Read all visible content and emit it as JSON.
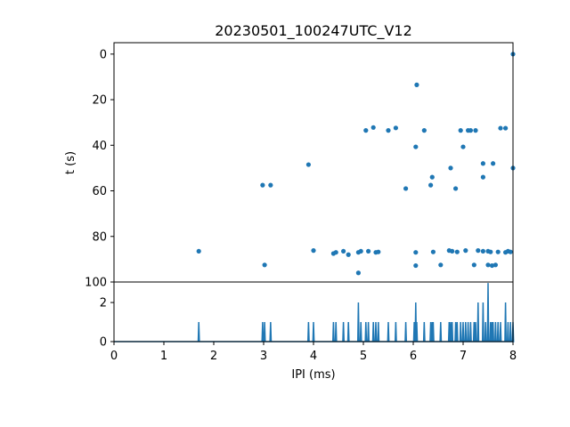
{
  "chart_data": [
    {
      "type": "scatter",
      "title": "20230501_100247UTC_V12",
      "ylabel": "t (s)",
      "xlim": [
        0,
        8
      ],
      "ylim": [
        100,
        -5
      ],
      "y_inverted": true,
      "yticks": [
        "0",
        "20",
        "40",
        "60",
        "80",
        "100"
      ],
      "color": "#1f77b4",
      "points": [
        [
          8.0,
          0
        ],
        [
          6.07,
          13.5
        ],
        [
          5.2,
          32.2
        ],
        [
          5.65,
          32.4
        ],
        [
          5.05,
          33.5
        ],
        [
          5.5,
          33.5
        ],
        [
          6.22,
          33.5
        ],
        [
          6.95,
          33.5
        ],
        [
          7.1,
          33.5
        ],
        [
          7.15,
          33.5
        ],
        [
          7.25,
          33.5
        ],
        [
          7.75,
          32.5
        ],
        [
          7.85,
          32.5
        ],
        [
          6.05,
          40.7
        ],
        [
          7.0,
          40.7
        ],
        [
          3.9,
          48.5
        ],
        [
          7.4,
          48.0
        ],
        [
          7.6,
          48.0
        ],
        [
          6.75,
          50.0
        ],
        [
          8.0,
          50.0
        ],
        [
          6.38,
          54.0
        ],
        [
          7.4,
          54.0
        ],
        [
          2.98,
          57.5
        ],
        [
          3.14,
          57.5
        ],
        [
          6.35,
          57.5
        ],
        [
          5.85,
          59.0
        ],
        [
          6.85,
          59.0
        ],
        [
          1.7,
          86.5
        ],
        [
          4.0,
          86.2
        ],
        [
          4.4,
          87.5
        ],
        [
          4.45,
          87.0
        ],
        [
          4.6,
          86.5
        ],
        [
          4.7,
          88.0
        ],
        [
          4.9,
          87.0
        ],
        [
          4.95,
          86.5
        ],
        [
          5.1,
          86.5
        ],
        [
          5.25,
          87.0
        ],
        [
          5.3,
          86.8
        ],
        [
          6.05,
          87.0
        ],
        [
          6.4,
          86.8
        ],
        [
          6.72,
          86.2
        ],
        [
          6.78,
          86.5
        ],
        [
          6.88,
          86.8
        ],
        [
          7.05,
          86.2
        ],
        [
          7.3,
          86.2
        ],
        [
          7.4,
          86.5
        ],
        [
          7.5,
          86.5
        ],
        [
          7.55,
          86.8
        ],
        [
          7.7,
          86.8
        ],
        [
          7.85,
          87.0
        ],
        [
          7.9,
          86.5
        ],
        [
          7.95,
          86.8
        ],
        [
          3.02,
          92.5
        ],
        [
          6.05,
          92.8
        ],
        [
          6.55,
          92.5
        ],
        [
          7.22,
          92.5
        ],
        [
          7.5,
          92.5
        ],
        [
          7.58,
          92.8
        ],
        [
          7.65,
          92.5
        ],
        [
          4.9,
          96.0
        ]
      ]
    },
    {
      "type": "line",
      "xlabel": "IPI (ms)",
      "xlim": [
        0,
        8
      ],
      "ylim": [
        0,
        3.05
      ],
      "xticks": [
        "0",
        "1",
        "2",
        "3",
        "4",
        "5",
        "6",
        "7",
        "8"
      ],
      "yticks": [
        "0",
        "2"
      ],
      "color": "#1f77b4",
      "spikes": [
        [
          1.7,
          1
        ],
        [
          2.98,
          1
        ],
        [
          3.02,
          1
        ],
        [
          3.14,
          1
        ],
        [
          3.9,
          1
        ],
        [
          4.0,
          1
        ],
        [
          4.4,
          1
        ],
        [
          4.45,
          1
        ],
        [
          4.6,
          1
        ],
        [
          4.7,
          1
        ],
        [
          4.9,
          2
        ],
        [
          4.95,
          1
        ],
        [
          5.05,
          1
        ],
        [
          5.1,
          1
        ],
        [
          5.2,
          1
        ],
        [
          5.25,
          1
        ],
        [
          5.3,
          1
        ],
        [
          5.5,
          1
        ],
        [
          5.65,
          1
        ],
        [
          5.85,
          1
        ],
        [
          6.02,
          1
        ],
        [
          6.05,
          2
        ],
        [
          6.07,
          1
        ],
        [
          6.22,
          1
        ],
        [
          6.35,
          1
        ],
        [
          6.38,
          1
        ],
        [
          6.4,
          1
        ],
        [
          6.55,
          1
        ],
        [
          6.72,
          1
        ],
        [
          6.75,
          1
        ],
        [
          6.78,
          1
        ],
        [
          6.85,
          1
        ],
        [
          6.88,
          1
        ],
        [
          6.95,
          1
        ],
        [
          7.0,
          1
        ],
        [
          7.05,
          1
        ],
        [
          7.1,
          1
        ],
        [
          7.15,
          1
        ],
        [
          7.22,
          1
        ],
        [
          7.25,
          1
        ],
        [
          7.3,
          2
        ],
        [
          7.4,
          2
        ],
        [
          7.45,
          1
        ],
        [
          7.5,
          3
        ],
        [
          7.55,
          1
        ],
        [
          7.58,
          1
        ],
        [
          7.6,
          1
        ],
        [
          7.65,
          1
        ],
        [
          7.7,
          1
        ],
        [
          7.75,
          1
        ],
        [
          7.85,
          2
        ],
        [
          7.9,
          1
        ],
        [
          7.95,
          1
        ],
        [
          8.0,
          1
        ]
      ]
    }
  ]
}
